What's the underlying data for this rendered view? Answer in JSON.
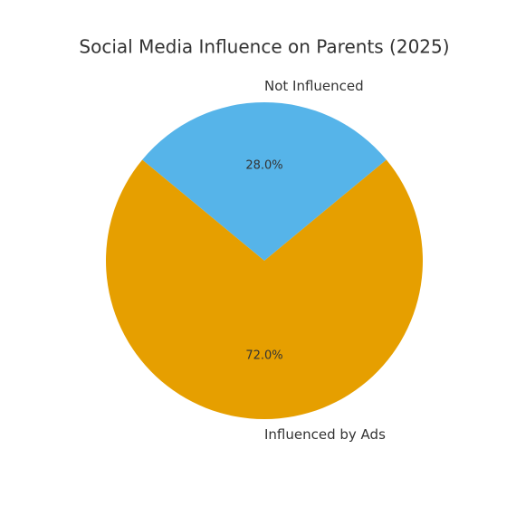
{
  "chart_data": {
    "type": "pie",
    "title": "Social Media Influence on Parents (2025)",
    "categories": [
      "Not Influenced",
      "Influenced by Ads"
    ],
    "values": [
      28,
      72
    ],
    "value_labels": [
      "28.0%",
      "72.0%"
    ],
    "colors": [
      "#56B4E9",
      "#E69F00"
    ]
  }
}
